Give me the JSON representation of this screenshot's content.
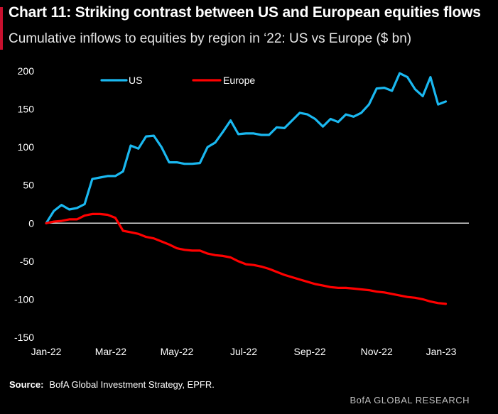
{
  "header": {
    "title": "Chart 11: Striking contrast between US and European equities flows",
    "subtitle": "Cumulative inflows to equities by region in ‘22: US vs Europe ($ bn)"
  },
  "footer": {
    "source_label": "Source:",
    "source_text": "BofA Global Investment Strategy, EPFR.",
    "brand": "BofA GLOBAL RESEARCH"
  },
  "chart_data": {
    "type": "line",
    "title": "Chart 11: Striking contrast between US and European equities flows",
    "subtitle": "Cumulative inflows to equities by region in ‘22: US vs Europe ($ bn)",
    "xlabel": "",
    "ylabel": "",
    "x_ticks": [
      "Jan-22",
      "Mar-22",
      "May-22",
      "Jul-22",
      "Sep-22",
      "Nov-22",
      "Jan-23"
    ],
    "x_tick_index": [
      0,
      8.4,
      17,
      25.7,
      34.3,
      43,
      51.4
    ],
    "y_ticks": [
      200,
      150,
      100,
      50,
      0,
      -50,
      -100,
      -150
    ],
    "ylim": [
      -150,
      200
    ],
    "xlim": [
      0,
      55
    ],
    "legend_position": "top",
    "grid": false,
    "series": [
      {
        "name": "US",
        "color": "#1ab8f0",
        "values": [
          0,
          16,
          24,
          18,
          20,
          25,
          58,
          60,
          62,
          62,
          68,
          102,
          98,
          114,
          115,
          100,
          80,
          80,
          78,
          78,
          79,
          100,
          106,
          120,
          135,
          117,
          118,
          118,
          116,
          116,
          126,
          125,
          135,
          145,
          143,
          137,
          127,
          137,
          133,
          143,
          140,
          145,
          156,
          177,
          178,
          174,
          197,
          192,
          176,
          167,
          192,
          156,
          160
        ]
      },
      {
        "name": "Europe",
        "color": "#ff0000",
        "values": [
          0,
          2,
          3,
          5,
          5,
          10,
          12,
          12,
          11,
          7,
          -10,
          -12,
          -14,
          -18,
          -20,
          -24,
          -28,
          -33,
          -35,
          -36,
          -36,
          -40,
          -42,
          -43,
          -45,
          -50,
          -54,
          -55,
          -57,
          -60,
          -64,
          -68,
          -71,
          -74,
          -77,
          -80,
          -82,
          -84,
          -85,
          -85,
          -86,
          -87,
          -88,
          -90,
          -91,
          -93,
          -95,
          -97,
          -98,
          -100,
          -103,
          -105,
          -106
        ]
      }
    ]
  }
}
